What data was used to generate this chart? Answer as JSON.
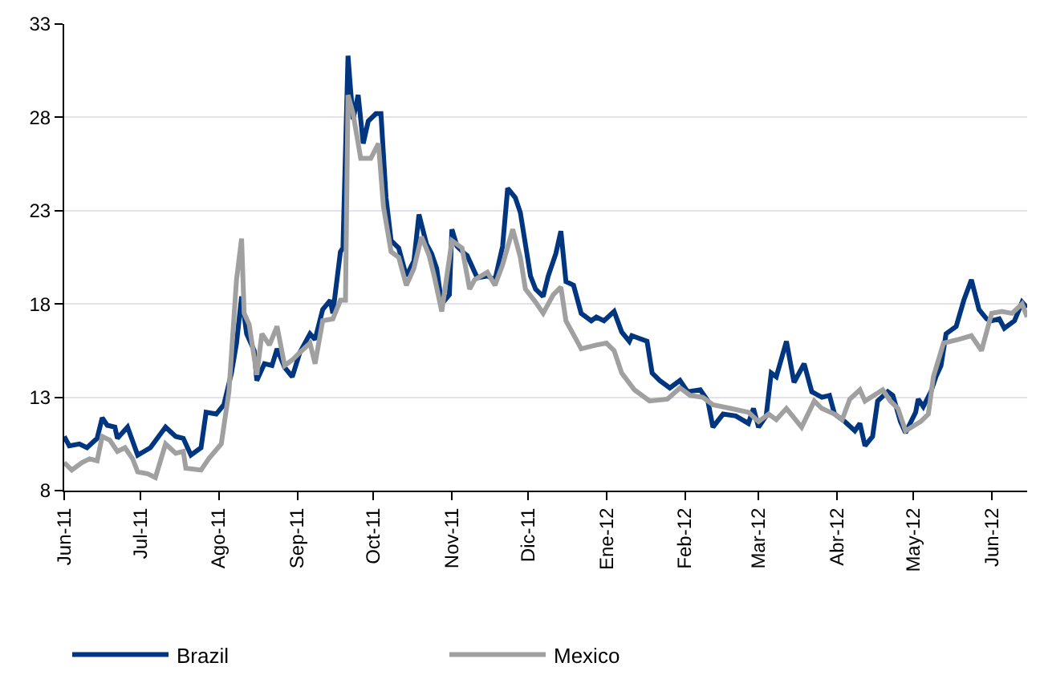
{
  "chart_data": {
    "type": "line",
    "xlim": [
      "2011-06-01",
      "2012-06-15"
    ],
    "xticks": [
      {
        "value": "2011-06-01",
        "label": "Jun-11"
      },
      {
        "value": "2011-07-01",
        "label": "Jul-11"
      },
      {
        "value": "2011-08-01",
        "label": "Ago-11"
      },
      {
        "value": "2011-09-01",
        "label": "Sep-11"
      },
      {
        "value": "2011-10-01",
        "label": "Oct-11"
      },
      {
        "value": "2011-11-01",
        "label": "Nov-11"
      },
      {
        "value": "2011-12-01",
        "label": "Dic-11"
      },
      {
        "value": "2012-01-01",
        "label": "Ene-12"
      },
      {
        "value": "2012-02-01",
        "label": "Feb-12"
      },
      {
        "value": "2012-03-01",
        "label": "Mar-12"
      },
      {
        "value": "2012-04-01",
        "label": "Abr-12"
      },
      {
        "value": "2012-05-01",
        "label": "May-12"
      },
      {
        "value": "2012-06-01",
        "label": "Jun-12"
      }
    ],
    "ylim": [
      8,
      33
    ],
    "yticks": [
      8,
      13,
      18,
      23,
      28,
      33
    ],
    "grid": "y",
    "legend": "bottom left",
    "marker": "none",
    "line_style": "solid",
    "series": [
      {
        "name": "Brazil",
        "color": "#003580",
        "x": [
          "2011-06-01",
          "2011-06-03",
          "2011-06-07",
          "2011-06-10",
          "2011-06-14",
          "2011-06-16",
          "2011-06-18",
          "2011-06-21",
          "2011-06-22",
          "2011-06-26",
          "2011-06-30",
          "2011-07-05",
          "2011-07-11",
          "2011-07-15",
          "2011-07-18",
          "2011-07-21",
          "2011-07-25",
          "2011-07-27",
          "2011-07-31",
          "2011-08-03",
          "2011-08-06",
          "2011-08-08",
          "2011-08-10",
          "2011-08-12",
          "2011-08-15",
          "2011-08-16",
          "2011-08-19",
          "2011-08-22",
          "2011-08-24",
          "2011-08-27",
          "2011-08-30",
          "2011-09-02",
          "2011-09-06",
          "2011-09-08",
          "2011-09-11",
          "2011-09-14",
          "2011-09-15",
          "2011-09-18",
          "2011-09-19",
          "2011-09-21",
          "2011-09-22",
          "2011-09-23",
          "2011-09-25",
          "2011-09-27",
          "2011-09-29",
          "2011-10-02",
          "2011-10-04",
          "2011-10-06",
          "2011-10-08",
          "2011-10-11",
          "2011-10-14",
          "2011-10-17",
          "2011-10-19",
          "2011-10-22",
          "2011-10-24",
          "2011-10-26",
          "2011-10-28",
          "2011-10-31",
          "2011-11-01",
          "2011-11-03",
          "2011-11-06",
          "2011-11-07",
          "2011-11-11",
          "2011-11-15",
          "2011-11-18",
          "2011-11-21",
          "2011-11-23",
          "2011-11-26",
          "2011-11-28",
          "2011-12-02",
          "2011-12-04",
          "2011-12-07",
          "2011-12-09",
          "2011-12-12",
          "2011-12-14",
          "2011-12-16",
          "2011-12-19",
          "2011-12-22",
          "2011-12-26",
          "2011-12-28",
          "2011-12-31",
          "2012-01-04",
          "2012-01-07",
          "2012-01-10",
          "2012-01-11",
          "2012-01-17",
          "2012-01-19",
          "2012-01-22",
          "2012-01-26",
          "2012-01-30",
          "2012-02-02",
          "2012-02-07",
          "2012-02-10",
          "2012-02-12",
          "2012-02-16",
          "2012-02-21",
          "2012-02-26",
          "2012-02-28",
          "2012-03-01",
          "2012-03-04",
          "2012-03-06",
          "2012-03-08",
          "2012-03-12",
          "2012-03-15",
          "2012-03-19",
          "2012-03-22",
          "2012-03-26",
          "2012-03-29",
          "2012-03-31",
          "2012-04-04",
          "2012-04-08",
          "2012-04-10",
          "2012-04-12",
          "2012-04-15",
          "2012-04-17",
          "2012-04-21",
          "2012-04-23",
          "2012-04-26",
          "2012-04-28",
          "2012-05-02",
          "2012-05-03",
          "2012-05-05",
          "2012-05-08",
          "2012-05-10",
          "2012-05-12",
          "2012-05-14",
          "2012-05-18",
          "2012-05-21",
          "2012-05-24",
          "2012-05-27",
          "2012-05-30",
          "2012-06-01",
          "2012-06-04",
          "2012-06-06",
          "2012-06-10",
          "2012-06-13",
          "2012-06-15"
        ],
        "values": [
          10.9,
          10.4,
          10.5,
          10.3,
          10.8,
          11.9,
          11.5,
          11.4,
          10.8,
          11.4,
          9.9,
          10.3,
          11.4,
          10.9,
          10.8,
          9.9,
          10.3,
          12.2,
          12.1,
          12.6,
          14.3,
          15.9,
          18.4,
          16.4,
          15.5,
          13.9,
          14.8,
          14.7,
          15.6,
          14.6,
          14.1,
          15.4,
          16.4,
          16.1,
          17.7,
          18.2,
          17.5,
          20.8,
          21.0,
          31.3,
          29.5,
          27.9,
          29.2,
          26.6,
          27.8,
          28.2,
          28.2,
          23.7,
          21.4,
          21.0,
          19.5,
          20.3,
          22.8,
          21.2,
          20.7,
          19.9,
          18.0,
          18.5,
          22.0,
          21.1,
          20.7,
          20.6,
          19.4,
          19.5,
          19.3,
          21.1,
          24.2,
          23.7,
          22.9,
          19.5,
          18.8,
          18.4,
          19.5,
          20.7,
          21.9,
          19.2,
          19.0,
          17.5,
          17.1,
          17.3,
          17.1,
          17.6,
          16.5,
          16.0,
          16.3,
          16.0,
          14.3,
          13.9,
          13.5,
          13.9,
          13.3,
          13.4,
          12.8,
          11.4,
          12.1,
          12.0,
          11.6,
          12.4,
          11.4,
          12.0,
          14.3,
          14.1,
          16.0,
          13.8,
          14.8,
          13.3,
          13.0,
          13.1,
          12.1,
          11.7,
          11.2,
          11.6,
          10.4,
          10.9,
          12.8,
          13.3,
          13.1,
          11.7,
          11.1,
          12.2,
          12.9,
          12.5,
          13.3,
          14.1,
          14.7,
          16.4,
          16.8,
          18.2,
          19.3,
          17.7,
          17.2,
          17.1,
          17.2,
          16.7,
          17.1,
          18.1,
          17.8
        ]
      },
      {
        "name": "Mexico",
        "color": "#a0a0a0",
        "x": [
          "2011-06-01",
          "2011-06-04",
          "2011-06-08",
          "2011-06-11",
          "2011-06-14",
          "2011-06-16",
          "2011-06-19",
          "2011-06-22",
          "2011-06-25",
          "2011-06-28",
          "2011-06-30",
          "2011-07-04",
          "2011-07-07",
          "2011-07-11",
          "2011-07-15",
          "2011-07-18",
          "2011-07-19",
          "2011-07-25",
          "2011-07-28",
          "2011-08-02",
          "2011-08-05",
          "2011-08-08",
          "2011-08-10",
          "2011-08-11",
          "2011-08-13",
          "2011-08-16",
          "2011-08-18",
          "2011-08-21",
          "2011-08-24",
          "2011-08-27",
          "2011-08-30",
          "2011-09-02",
          "2011-09-06",
          "2011-09-08",
          "2011-09-11",
          "2011-09-15",
          "2011-09-18",
          "2011-09-20",
          "2011-09-21",
          "2011-09-23",
          "2011-09-26",
          "2011-09-28",
          "2011-09-30",
          "2011-10-03",
          "2011-10-05",
          "2011-10-08",
          "2011-10-11",
          "2011-10-14",
          "2011-10-17",
          "2011-10-20",
          "2011-10-23",
          "2011-10-25",
          "2011-10-28",
          "2011-11-01",
          "2011-11-05",
          "2011-11-08",
          "2011-11-10",
          "2011-11-15",
          "2011-11-18",
          "2011-11-21",
          "2011-11-25",
          "2011-11-28",
          "2011-11-30",
          "2011-12-04",
          "2011-12-07",
          "2011-12-11",
          "2011-12-14",
          "2011-12-16",
          "2011-12-20",
          "2011-12-22",
          "2011-12-28",
          "2012-01-01",
          "2012-01-04",
          "2012-01-07",
          "2012-01-12",
          "2012-01-18",
          "2012-01-25",
          "2012-01-30",
          "2012-02-03",
          "2012-02-08",
          "2012-02-12",
          "2012-02-19",
          "2012-02-26",
          "2012-03-01",
          "2012-03-05",
          "2012-03-08",
          "2012-03-12",
          "2012-03-18",
          "2012-03-23",
          "2012-03-26",
          "2012-03-31",
          "2012-04-03",
          "2012-04-06",
          "2012-04-10",
          "2012-04-12",
          "2012-04-19",
          "2012-04-22",
          "2012-04-25",
          "2012-04-28",
          "2012-05-04",
          "2012-05-07",
          "2012-05-09",
          "2012-05-13",
          "2012-05-19",
          "2012-05-24",
          "2012-05-28",
          "2012-06-01",
          "2012-06-05",
          "2012-06-09",
          "2012-06-13",
          "2012-06-15"
        ],
        "values": [
          9.5,
          9.1,
          9.5,
          9.7,
          9.6,
          10.9,
          10.7,
          10.1,
          10.3,
          9.7,
          9.0,
          8.9,
          8.7,
          10.5,
          10.0,
          10.1,
          9.2,
          9.1,
          9.7,
          10.5,
          13.3,
          19.3,
          21.5,
          17.5,
          16.9,
          14.2,
          16.4,
          15.8,
          16.8,
          14.7,
          15.0,
          15.4,
          15.9,
          14.8,
          17.1,
          17.2,
          18.2,
          18.2,
          29.2,
          28.2,
          25.8,
          25.8,
          25.8,
          26.6,
          23.2,
          20.8,
          20.5,
          19.0,
          19.9,
          21.6,
          20.6,
          19.5,
          17.6,
          21.4,
          21.0,
          18.8,
          19.3,
          19.7,
          19.0,
          20.1,
          22.0,
          20.5,
          18.8,
          18.1,
          17.5,
          18.5,
          18.9,
          17.1,
          16.1,
          15.6,
          15.8,
          15.9,
          15.5,
          14.3,
          13.4,
          12.8,
          12.9,
          13.5,
          13.1,
          13.0,
          12.6,
          12.4,
          12.2,
          11.7,
          12.1,
          11.8,
          12.4,
          11.4,
          12.8,
          12.4,
          12.1,
          11.8,
          12.9,
          13.4,
          12.8,
          13.4,
          12.8,
          12.4,
          11.2,
          11.7,
          12.1,
          14.1,
          15.9,
          16.1,
          16.3,
          15.5,
          17.5,
          17.6,
          17.5,
          18.0,
          17.3
        ]
      }
    ]
  }
}
